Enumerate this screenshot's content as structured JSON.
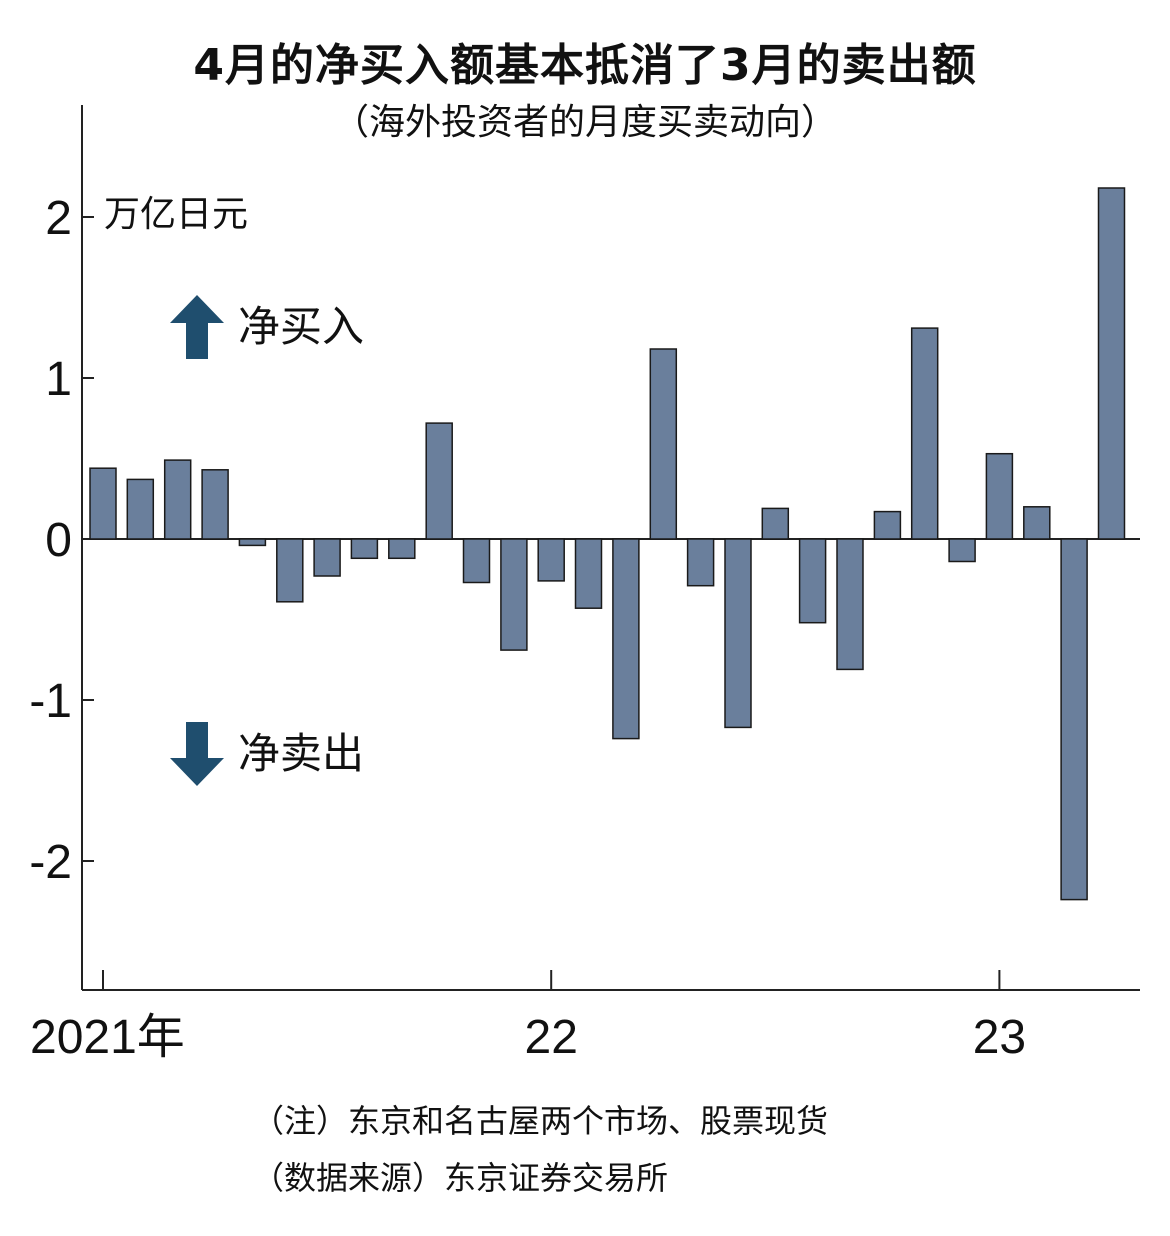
{
  "title": "4月的净买入额基本抵消了3月的卖出额",
  "subtitle": "（海外投资者的月度买卖动向）",
  "legend": {
    "up_label": "净买入",
    "down_label": "净卖出",
    "up_color": "#1f4e6e",
    "down_color": "#1f4e6e"
  },
  "notes": {
    "note": "（注）东京和名古屋两个市场、股票现货",
    "source": "（数据来源）东京证券交易所"
  },
  "chart_data": {
    "type": "bar",
    "ylabel": "万亿日元",
    "ylim": [
      -2.8,
      2.7
    ],
    "y_ticks": [
      2,
      1,
      0,
      -1,
      -2
    ],
    "y_tick_labels": [
      "2",
      "1",
      "0",
      "-1",
      "-2"
    ],
    "x_tick_labels": [
      "2021年",
      "22",
      "23"
    ],
    "x_tick_index": [
      0,
      12,
      24
    ],
    "grid": false,
    "bar_color": "#6a7f9c",
    "series": [
      {
        "values": [
          0.44,
          0.37,
          0.49,
          0.43,
          -0.04,
          -0.39,
          -0.23,
          -0.12,
          -0.12,
          0.72,
          -0.27,
          -0.69,
          -0.26,
          -0.43,
          -1.24,
          1.18,
          -0.29,
          -1.17,
          0.19,
          -0.52,
          -0.81,
          0.17,
          1.31,
          -0.14,
          0.53,
          0.2,
          -2.24,
          2.18
        ]
      }
    ]
  }
}
